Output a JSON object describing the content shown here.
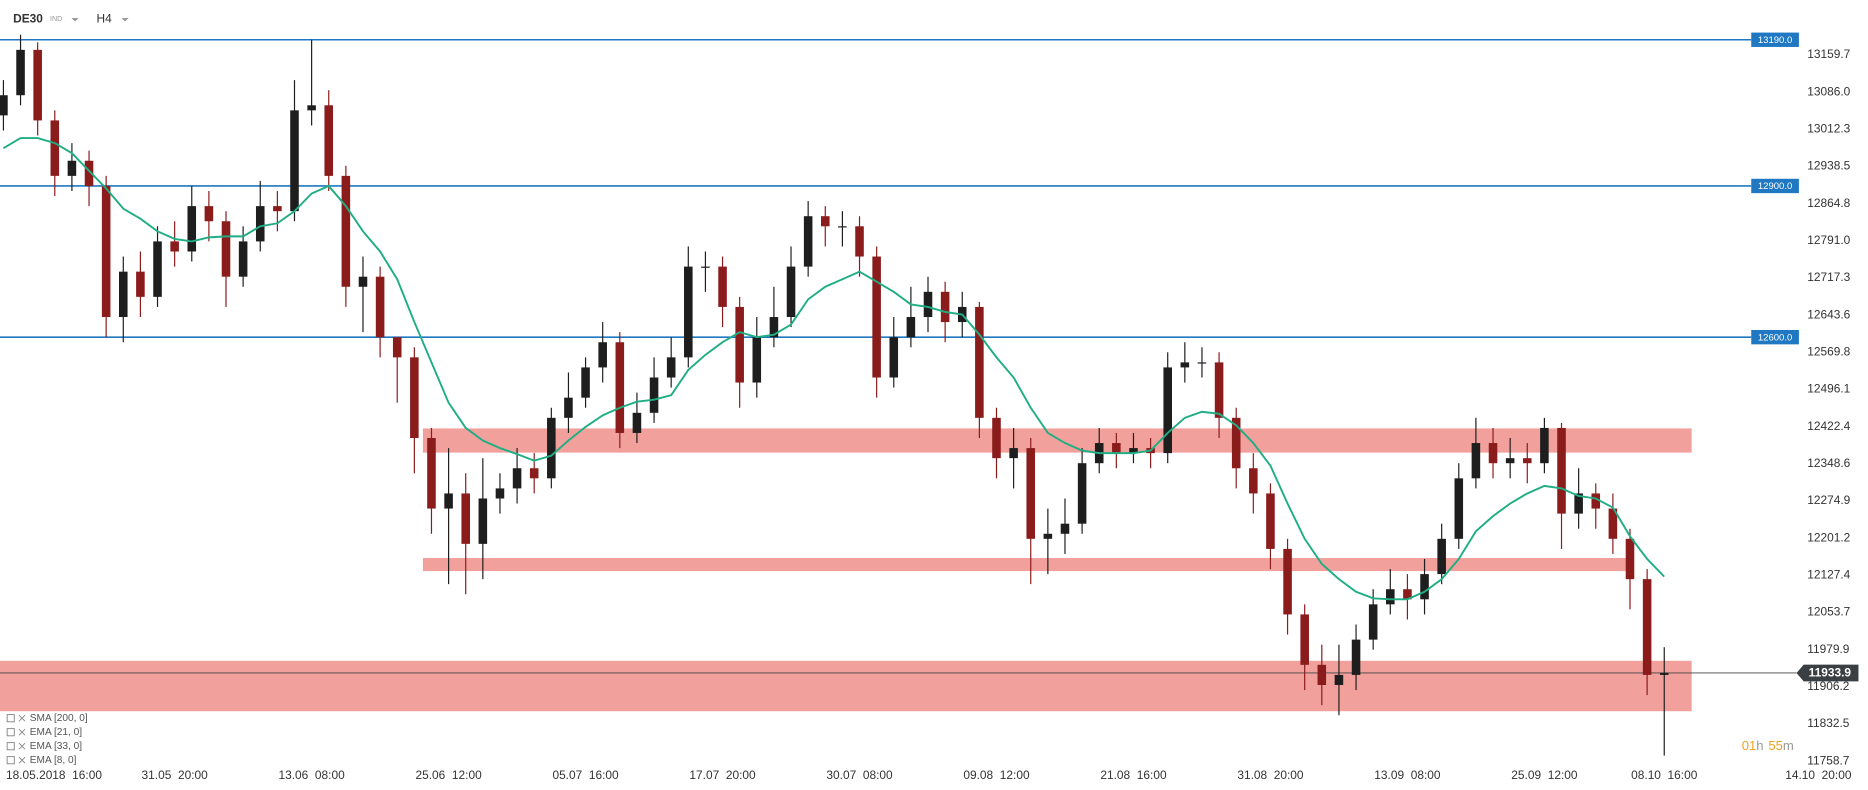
{
  "chart_data": {
    "type": "candlestick",
    "symbol": "DE30",
    "badge": "IND",
    "timeframe": "H4",
    "open": [
      13040,
      13080,
      13170,
      13030,
      12920,
      12950,
      12900,
      12640,
      12730,
      12680,
      12790,
      12770,
      12860,
      12830,
      12720,
      12790,
      12860,
      12850,
      13050,
      13060,
      12920,
      12700,
      12720,
      12600,
      12560,
      12400,
      12260,
      12290,
      12190,
      12280,
      12300,
      12340,
      12320,
      12440,
      12480,
      12540,
      12590,
      12410,
      12450,
      12520,
      12560,
      12740,
      12740,
      12660,
      12510,
      12600,
      12640,
      12740,
      12840,
      12820,
      12820,
      12760,
      12520,
      12600,
      12640,
      12690,
      12630,
      12660,
      12440,
      12360,
      12380,
      12200,
      12210,
      12230,
      12350,
      12390,
      12370,
      12380,
      12370,
      12540,
      12550,
      12550,
      12440,
      12340,
      12290,
      12180,
      12050,
      11950,
      11910,
      11930,
      12000,
      12070,
      12100,
      12080,
      12130,
      12200,
      12320,
      12390,
      12350,
      12360,
      12350,
      12420,
      12250,
      12290,
      12260,
      12200,
      12120,
      11930
    ],
    "high": [
      13110,
      13200,
      13185,
      13050,
      12985,
      12970,
      12920,
      12760,
      12770,
      12820,
      12830,
      12900,
      12890,
      12850,
      12820,
      12910,
      12890,
      13110,
      13190,
      13090,
      12940,
      12760,
      12740,
      12600,
      12580,
      12420,
      12380,
      12330,
      12360,
      12330,
      12380,
      12370,
      12460,
      12530,
      12560,
      12630,
      12610,
      12490,
      12560,
      12600,
      12780,
      12770,
      12760,
      12680,
      12640,
      12700,
      12780,
      12870,
      12860,
      12850,
      12840,
      12780,
      12640,
      12700,
      12720,
      12710,
      12690,
      12670,
      12460,
      12420,
      12400,
      12260,
      12280,
      12380,
      12420,
      12410,
      12410,
      12400,
      12570,
      12590,
      12580,
      12570,
      12460,
      12370,
      12310,
      12200,
      12070,
      11990,
      11990,
      12030,
      12100,
      12140,
      12130,
      12160,
      12230,
      12350,
      12440,
      12420,
      12400,
      12390,
      12440,
      12430,
      12340,
      12310,
      12290,
      12220,
      12140,
      11985
    ],
    "low": [
      13010,
      13060,
      13000,
      12880,
      12890,
      12860,
      12600,
      12590,
      12640,
      12660,
      12740,
      12750,
      12790,
      12660,
      12700,
      12770,
      12810,
      12830,
      13020,
      12890,
      12660,
      12610,
      12560,
      12470,
      12330,
      12210,
      12110,
      12090,
      12120,
      12250,
      12270,
      12290,
      12300,
      12410,
      12460,
      12510,
      12380,
      12390,
      12430,
      12500,
      12540,
      12690,
      12620,
      12460,
      12480,
      12580,
      12620,
      12720,
      12780,
      12780,
      12720,
      12480,
      12500,
      12580,
      12610,
      12590,
      12600,
      12400,
      12320,
      12300,
      12110,
      12130,
      12170,
      12210,
      12330,
      12340,
      12350,
      12340,
      12350,
      12510,
      12520,
      12400,
      12300,
      12250,
      12140,
      12010,
      11900,
      11870,
      11850,
      11900,
      11980,
      12050,
      12040,
      12050,
      12110,
      12180,
      12300,
      12320,
      12320,
      12310,
      12330,
      12180,
      12220,
      12220,
      12170,
      12060,
      11890,
      11770
    ],
    "close": [
      13080,
      13170,
      13030,
      12920,
      12950,
      12900,
      12640,
      12730,
      12680,
      12790,
      12770,
      12860,
      12830,
      12720,
      12790,
      12860,
      12850,
      13050,
      13060,
      12920,
      12700,
      12720,
      12600,
      12560,
      12400,
      12260,
      12290,
      12190,
      12280,
      12300,
      12340,
      12320,
      12440,
      12480,
      12540,
      12590,
      12410,
      12450,
      12520,
      12560,
      12740,
      12740,
      12660,
      12510,
      12600,
      12640,
      12740,
      12840,
      12820,
      12820,
      12760,
      12520,
      12600,
      12640,
      12690,
      12630,
      12660,
      12440,
      12360,
      12380,
      12200,
      12210,
      12230,
      12350,
      12390,
      12370,
      12380,
      12370,
      12540,
      12550,
      12550,
      12440,
      12340,
      12290,
      12180,
      12050,
      11950,
      11910,
      11930,
      12000,
      12070,
      12100,
      12080,
      12130,
      12200,
      12320,
      12390,
      12350,
      12360,
      12350,
      12420,
      12250,
      12290,
      12260,
      12200,
      12120,
      11930,
      11934
    ],
    "ema": [
      12975,
      12995,
      12995,
      12985,
      12965,
      12930,
      12895,
      12855,
      12835,
      12810,
      12795,
      12790,
      12798,
      12800,
      12800,
      12820,
      12826,
      12850,
      12885,
      12900,
      12860,
      12810,
      12770,
      12715,
      12630,
      12550,
      12470,
      12420,
      12395,
      12380,
      12368,
      12355,
      12365,
      12395,
      12422,
      12445,
      12460,
      12472,
      12476,
      12485,
      12535,
      12565,
      12590,
      12610,
      12600,
      12605,
      12625,
      12675,
      12700,
      12715,
      12730,
      12710,
      12690,
      12665,
      12660,
      12650,
      12645,
      12605,
      12560,
      12520,
      12460,
      12410,
      12390,
      12375,
      12370,
      12370,
      12370,
      12375,
      12410,
      12440,
      12452,
      12448,
      12425,
      12390,
      12345,
      12270,
      12200,
      12150,
      12120,
      12095,
      12082,
      12080,
      12080,
      12095,
      12120,
      12160,
      12215,
      12245,
      12270,
      12290,
      12305,
      12300,
      12285,
      12280,
      12262,
      12205,
      12160,
      12125
    ],
    "up_color": "#1e1e1e",
    "down_color": "#8b1c1c",
    "ema_color": "#1fae84",
    "level_color": "#1f78c1",
    "zone_color": "#ef8f8a",
    "levels": [
      {
        "value": 13190,
        "label": "13190.0"
      },
      {
        "value": 12900,
        "label": "12900.0"
      },
      {
        "value": 12600,
        "label": "12600.0"
      }
    ],
    "zones": [
      {
        "from": 12371,
        "to": 12419,
        "start": 24.5,
        "end": 98.6
      },
      {
        "from": 12136,
        "to": 12162,
        "start": 24.5,
        "end": 95.2
      },
      {
        "from": 11858,
        "to": 11958,
        "start": -0.2,
        "end": 98.6
      }
    ],
    "last": 11933.9,
    "xlim": [
      -0.2,
      108.9
    ],
    "ylim": [
      11701.7,
      13268.9
    ],
    "xticks": [
      {
        "value": 2,
        "label": "18.05.2018  16:00"
      },
      {
        "value": 10,
        "label": "31.05  20:00"
      },
      {
        "value": 18,
        "label": "13.06  08:00"
      },
      {
        "value": 26,
        "label": "25.06  12:00"
      },
      {
        "value": 34,
        "label": "05.07  16:00"
      },
      {
        "value": 42,
        "label": "17.07  20:00"
      },
      {
        "value": 50,
        "label": "30.07  08:00"
      },
      {
        "value": 58,
        "label": "09.08  12:00"
      },
      {
        "value": 66,
        "label": "21.08  16:00"
      },
      {
        "value": 74,
        "label": "31.08  20:00"
      },
      {
        "value": 82,
        "label": "13.09  08:00"
      },
      {
        "value": 90,
        "label": "25.09  12:00"
      },
      {
        "value": 97,
        "label": "08.10  16:00"
      },
      {
        "value": 106,
        "label": "14.10  20:00"
      }
    ],
    "yticks": [
      13159.7,
      {
        "value": 13086,
        "label": "13086.0"
      },
      13012.3,
      12938.5,
      12864.8,
      {
        "value": 12791,
        "label": "12791.0"
      },
      12717.3,
      12643.6,
      12569.8,
      12496.1,
      12422.4,
      12348.6,
      12274.9,
      12201.2,
      12127.4,
      12053.7,
      11979.9,
      11906.2,
      11832.5,
      11758.7
    ],
    "legend": [
      "SMA [200, 0]",
      "EMA [21, 0]",
      "EMA [33, 0]",
      "EMA [8, 0]"
    ],
    "timer": [
      "01",
      "h",
      "55",
      "m"
    ]
  }
}
